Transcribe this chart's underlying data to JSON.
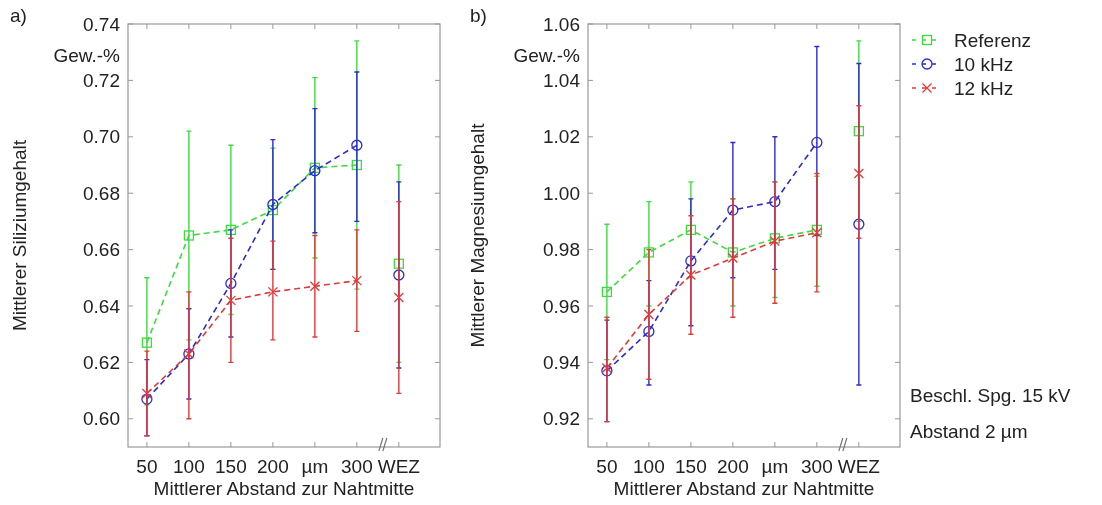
{
  "chart_data": [
    {
      "type": "line",
      "xlabel": "Mittlerer Abstand zur Nahtmitte",
      "ylabel": "Mittlerer Siliziumgehalt",
      "categories": [
        "50",
        "100",
        "150",
        "200",
        "µm",
        "300",
        "WEZ"
      ],
      "ylim": [
        0.59,
        0.74
      ],
      "yticks": [
        {
          "value": 0.6,
          "label": "0.60"
        },
        0.62,
        0.64,
        0.66,
        0.68,
        {
          "value": 0.7,
          "label": "0.70"
        },
        0.72,
        0.74
      ],
      "grid": false,
      "legend": false,
      "annotations": [
        "a)",
        "Gew.-%"
      ],
      "series": [
        {
          "color": "#3ddc3d",
          "marker": "square",
          "line_style": "dashed",
          "values": [
            0.627,
            0.665,
            0.667,
            0.674,
            0.689,
            0.69,
            null
          ],
          "errors": [
            [
              0.605,
              0.65
            ],
            [
              0.628,
              0.702
            ],
            [
              0.637,
              0.697
            ],
            [
              0.653,
              0.696
            ],
            [
              0.657,
              0.721
            ],
            [
              0.646,
              0.734
            ],
            null
          ]
        },
        {
          "color": "#2b2bd0",
          "marker": "circle",
          "line_style": "dashed",
          "values": [
            0.607,
            0.623,
            0.648,
            0.676,
            0.688,
            0.697,
            null
          ],
          "errors": [
            [
              0.594,
              0.621
            ],
            [
              0.607,
              0.639
            ],
            [
              0.629,
              0.667
            ],
            [
              0.653,
              0.699
            ],
            [
              0.666,
              0.71
            ],
            [
              0.67,
              0.723
            ],
            null
          ]
        },
        {
          "color": "#e03a3a",
          "marker": "cross",
          "line_style": "dashed",
          "values": [
            0.609,
            0.623,
            0.642,
            0.645,
            0.647,
            0.649,
            null
          ],
          "errors": [
            [
              0.594,
              0.624
            ],
            [
              0.6,
              0.645
            ],
            [
              0.62,
              0.664
            ],
            [
              0.628,
              0.663
            ],
            [
              0.629,
              0.665
            ],
            [
              0.631,
              0.667
            ],
            null
          ]
        },
        {
          "color": "#3ddc3d",
          "type": "scatter",
          "marker": "square",
          "x": [
            "WEZ"
          ],
          "values": [
            0.655
          ],
          "errors": [
            [
              0.62,
              0.69
            ]
          ]
        },
        {
          "color": "#2b2bd0",
          "type": "scatter",
          "marker": "circle",
          "x": [
            "WEZ"
          ],
          "values": [
            0.651
          ],
          "errors": [
            [
              0.618,
              0.684
            ]
          ]
        },
        {
          "color": "#e03a3a",
          "type": "scatter",
          "marker": "cross",
          "x": [
            "WEZ"
          ],
          "values": [
            0.643
          ],
          "errors": [
            [
              0.609,
              0.677
            ]
          ]
        }
      ]
    },
    {
      "type": "line",
      "xlabel": "Mittlerer Abstand zur Nahtmitte",
      "ylabel": "Mittlerer Magnesiumgehalt",
      "categories": [
        "50",
        "100",
        "150",
        "200",
        "µm",
        "300",
        "WEZ"
      ],
      "ylim": [
        0.91,
        1.06
      ],
      "yticks": [
        0.92,
        0.94,
        0.96,
        0.98,
        {
          "value": 1.0,
          "label": "1.00"
        },
        1.02,
        1.04,
        1.06
      ],
      "grid": false,
      "legend": "right",
      "annotations": [
        "b)",
        "Gew.-%",
        "Beschl. Spg. 15 kV",
        "Abstand 2 µm"
      ],
      "series": [
        {
          "name": "Referenz",
          "color": "#3ddc3d",
          "marker": "square",
          "line_style": "dashed",
          "values": [
            0.965,
            0.979,
            0.987,
            0.979,
            0.984,
            0.987,
            null
          ],
          "errors": [
            [
              0.941,
              0.989
            ],
            [
              0.96,
              0.997
            ],
            [
              0.97,
              1.004
            ],
            [
              0.96,
              0.998
            ],
            [
              0.963,
              1.004
            ],
            [
              0.967,
              1.006
            ],
            null
          ]
        },
        {
          "name": "10 kHz",
          "color": "#2b2bd0",
          "marker": "circle",
          "line_style": "dashed",
          "values": [
            0.937,
            0.951,
            0.976,
            0.994,
            0.997,
            1.018,
            null
          ],
          "errors": [
            [
              0.919,
              0.955
            ],
            [
              0.932,
              0.969
            ],
            [
              0.953,
              0.998
            ],
            [
              0.97,
              1.018
            ],
            [
              0.973,
              1.02
            ],
            [
              0.985,
              1.052
            ],
            null
          ]
        },
        {
          "name": "12 kHz",
          "color": "#e03a3a",
          "marker": "cross",
          "line_style": "dashed",
          "values": [
            0.938,
            0.957,
            0.971,
            0.977,
            0.983,
            0.986,
            null
          ],
          "errors": [
            [
              0.919,
              0.956
            ],
            [
              0.934,
              0.98
            ],
            [
              0.95,
              0.992
            ],
            [
              0.956,
              0.998
            ],
            [
              0.961,
              1.004
            ],
            [
              0.965,
              1.007
            ],
            null
          ]
        },
        {
          "color": "#3ddc3d",
          "type": "scatter",
          "marker": "square",
          "x": [
            "WEZ"
          ],
          "values": [
            1.022
          ],
          "errors": [
            [
              0.99,
              1.054
            ]
          ]
        },
        {
          "color": "#2b2bd0",
          "type": "scatter",
          "marker": "circle",
          "x": [
            "WEZ"
          ],
          "values": [
            0.989
          ],
          "errors": [
            [
              0.932,
              1.046
            ]
          ]
        },
        {
          "color": "#e03a3a",
          "type": "scatter",
          "marker": "cross",
          "x": [
            "WEZ"
          ],
          "values": [
            1.007
          ],
          "errors": [
            [
              0.984,
              1.031
            ]
          ]
        }
      ]
    }
  ]
}
